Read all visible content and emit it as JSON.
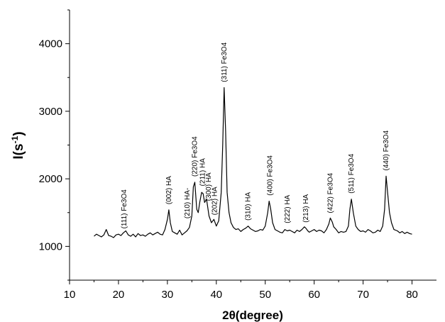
{
  "chart_data": {
    "type": "line",
    "title": "",
    "xlabel": "2θ(degree)",
    "ylabel_base": "I(s",
    "ylabel_exp": "-1",
    "ylabel_close": ")",
    "xlim": [
      10,
      85
    ],
    "ylim": [
      500,
      4500
    ],
    "xticks": [
      10,
      20,
      30,
      40,
      50,
      60,
      70,
      80
    ],
    "yticks": [
      1000,
      2000,
      3000,
      4000
    ],
    "grid": false,
    "legend": "none",
    "line_color": "#000000",
    "series": [
      {
        "x": [
          15.0,
          15.5,
          16.0,
          16.5,
          17.0,
          17.5,
          18.0,
          18.5,
          19.0,
          19.5,
          20.0,
          20.5,
          21.0,
          21.5,
          22.0,
          22.5,
          23.0,
          23.5,
          24.0,
          24.5,
          25.0,
          25.5,
          26.0,
          26.5,
          27.0,
          27.5,
          28.0,
          28.5,
          29.0,
          29.5,
          30.0,
          30.3,
          30.6,
          31.0,
          31.5,
          32.0,
          32.5,
          33.0,
          33.5,
          34.0,
          34.5,
          35.0,
          35.3,
          35.6,
          36.0,
          36.3,
          36.6,
          37.0,
          37.3,
          37.6,
          38.0,
          38.5,
          39.0,
          39.5,
          40.0,
          40.5,
          41.0,
          41.3,
          41.6,
          41.9,
          42.2,
          42.6,
          43.0,
          43.5,
          44.0,
          44.5,
          45.0,
          45.5,
          46.0,
          46.5,
          47.0,
          47.5,
          48.0,
          48.5,
          49.0,
          49.5,
          50.0,
          50.5,
          50.8,
          51.1,
          51.5,
          52.0,
          52.5,
          53.0,
          53.5,
          54.0,
          54.5,
          55.0,
          55.5,
          56.0,
          56.5,
          57.0,
          57.5,
          58.0,
          58.3,
          58.7,
          59.0,
          59.5,
          60.0,
          60.5,
          61.0,
          61.5,
          62.0,
          62.5,
          63.0,
          63.3,
          63.7,
          64.0,
          64.5,
          65.0,
          65.5,
          66.0,
          66.5,
          67.0,
          67.3,
          67.6,
          68.0,
          68.5,
          69.0,
          69.5,
          70.0,
          70.5,
          71.0,
          71.5,
          72.0,
          72.5,
          73.0,
          73.5,
          74.0,
          74.4,
          74.7,
          75.0,
          75.4,
          75.8,
          76.3,
          77.0,
          77.5,
          78.0,
          78.5,
          79.0,
          79.5,
          80.0
        ],
        "y": [
          1150,
          1180,
          1160,
          1140,
          1170,
          1250,
          1160,
          1150,
          1130,
          1170,
          1180,
          1160,
          1200,
          1230,
          1170,
          1150,
          1180,
          1140,
          1190,
          1160,
          1170,
          1150,
          1180,
          1200,
          1170,
          1190,
          1210,
          1180,
          1170,
          1250,
          1400,
          1540,
          1350,
          1220,
          1200,
          1180,
          1240,
          1170,
          1200,
          1230,
          1280,
          1450,
          1880,
          1950,
          1550,
          1500,
          1650,
          1800,
          1780,
          1650,
          1700,
          1450,
          1350,
          1400,
          1300,
          1380,
          1800,
          2500,
          3350,
          2700,
          1800,
          1500,
          1350,
          1280,
          1250,
          1260,
          1220,
          1250,
          1270,
          1300,
          1260,
          1240,
          1220,
          1230,
          1250,
          1240,
          1300,
          1500,
          1670,
          1560,
          1350,
          1250,
          1230,
          1210,
          1200,
          1250,
          1230,
          1240,
          1220,
          1200,
          1240,
          1220,
          1250,
          1290,
          1270,
          1230,
          1210,
          1230,
          1250,
          1220,
          1240,
          1230,
          1200,
          1250,
          1330,
          1420,
          1360,
          1290,
          1250,
          1200,
          1220,
          1210,
          1220,
          1300,
          1550,
          1700,
          1500,
          1300,
          1250,
          1220,
          1230,
          1210,
          1250,
          1230,
          1200,
          1210,
          1240,
          1220,
          1300,
          1550,
          2040,
          1800,
          1500,
          1350,
          1250,
          1230,
          1200,
          1220,
          1190,
          1210,
          1190,
          1180
        ]
      }
    ],
    "annotations": [
      {
        "text": "(111) Fe3O4",
        "x": 21.2,
        "y": 1210
      },
      {
        "text": "(002) HA",
        "x": 30.3,
        "y": 1570
      },
      {
        "text": "(210) HA-",
        "x": 34.1,
        "y": 1360
      },
      {
        "text": "(220) Fe3O4",
        "x": 35.6,
        "y": 1980
      },
      {
        "text": "(211) HA",
        "x": 37.2,
        "y": 1840
      },
      {
        "text": "(300) HA",
        "x": 38.4,
        "y": 1620
      },
      {
        "text": "(202) HA",
        "x": 39.7,
        "y": 1410
      },
      {
        "text": "(311) Fe3O4",
        "x": 41.6,
        "y": 3380
      },
      {
        "text": "(310) HA",
        "x": 46.5,
        "y": 1330
      },
      {
        "text": "(400) Fe3O4",
        "x": 51.0,
        "y": 1700
      },
      {
        "text": "(222) HA",
        "x": 54.5,
        "y": 1290
      },
      {
        "text": "(213) HA",
        "x": 58.3,
        "y": 1300
      },
      {
        "text": "(422) Fe3O4",
        "x": 63.3,
        "y": 1440
      },
      {
        "text": "(511) Fe3O4",
        "x": 67.6,
        "y": 1730
      },
      {
        "text": "(440) Fe3O4",
        "x": 74.7,
        "y": 2070
      }
    ]
  }
}
